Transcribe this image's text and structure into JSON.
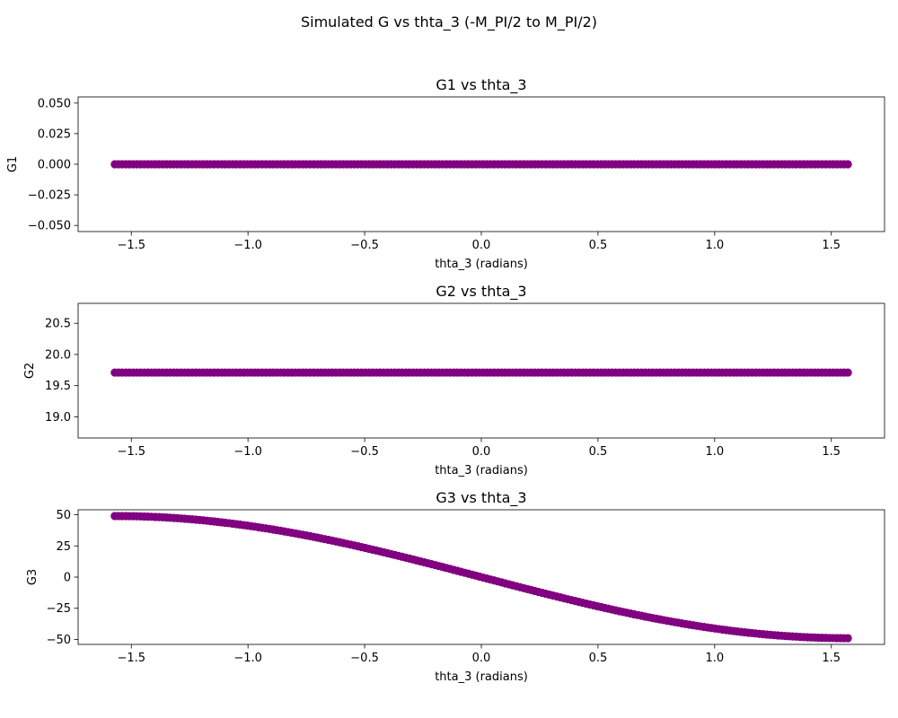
{
  "figure": {
    "suptitle": "Simulated G vs thta_3 (-M_PI/2 to M_PI/2)"
  },
  "chart_data": [
    {
      "type": "scatter",
      "title": "G1 vs thta_3",
      "xlabel": "thta_3 (radians)",
      "ylabel": "G1",
      "marker_color": "#800080",
      "xlim": [
        -1.728,
        1.728
      ],
      "ylim": [
        -0.055,
        0.055
      ],
      "xticks": [
        -1.5,
        -1.0,
        -0.5,
        0.0,
        0.5,
        1.0,
        1.5
      ],
      "xtick_labels": [
        "−1.5",
        "−1.0",
        "−0.5",
        "0.0",
        "0.5",
        "1.0",
        "1.5"
      ],
      "yticks": [
        -0.05,
        -0.025,
        0.0,
        0.025,
        0.05
      ],
      "ytick_labels": [
        "−0.050",
        "−0.025",
        "0.000",
        "0.025",
        "0.050"
      ],
      "grid": false,
      "series": [
        {
          "function": "constant",
          "n_points": 200,
          "x_range": [
            -1.5708,
            1.5708
          ],
          "y_value": 0.0
        }
      ]
    },
    {
      "type": "scatter",
      "title": "G2 vs thta_3",
      "xlabel": "thta_3 (radians)",
      "ylabel": "G2",
      "marker_color": "#800080",
      "xlim": [
        -1.728,
        1.728
      ],
      "ylim": [
        18.66,
        20.82
      ],
      "xticks": [
        -1.5,
        -1.0,
        -0.5,
        0.0,
        0.5,
        1.0,
        1.5
      ],
      "xtick_labels": [
        "−1.5",
        "−1.0",
        "−0.5",
        "0.0",
        "0.5",
        "1.0",
        "1.5"
      ],
      "yticks": [
        19.0,
        19.5,
        20.0,
        20.5
      ],
      "ytick_labels": [
        "19.0",
        "19.5",
        "20.0",
        "20.5"
      ],
      "grid": false,
      "series": [
        {
          "function": "constant",
          "n_points": 200,
          "x_range": [
            -1.5708,
            1.5708
          ],
          "y_value": 19.71
        }
      ]
    },
    {
      "type": "scatter",
      "title": "G3 vs thta_3",
      "xlabel": "thta_3 (radians)",
      "ylabel": "G3",
      "marker_color": "#800080",
      "xlim": [
        -1.728,
        1.728
      ],
      "ylim": [
        -54.0,
        54.0
      ],
      "xticks": [
        -1.5,
        -1.0,
        -0.5,
        0.0,
        0.5,
        1.0,
        1.5
      ],
      "xtick_labels": [
        "−1.5",
        "−1.0",
        "−0.5",
        "0.0",
        "0.5",
        "1.0",
        "1.5"
      ],
      "yticks": [
        -50,
        -25,
        0,
        25,
        50
      ],
      "ytick_labels": [
        "−50",
        "−25",
        "0",
        "25",
        "50"
      ],
      "grid": false,
      "series": [
        {
          "function": "neg_sine",
          "n_points": 200,
          "x_range": [
            -1.5708,
            1.5708
          ],
          "amplitude": 49.0
        }
      ]
    }
  ]
}
